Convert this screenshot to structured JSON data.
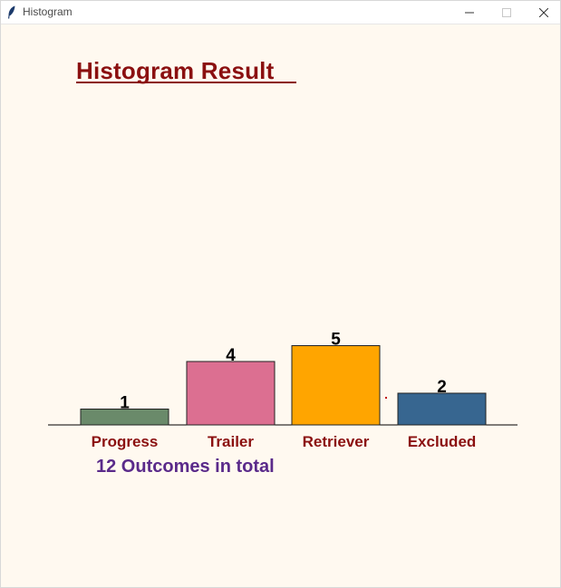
{
  "window": {
    "title": "Histogram",
    "icon": "feather-icon",
    "controls": [
      "minimize-icon",
      "maximize-icon",
      "close-icon"
    ],
    "background": "#fff9f0"
  },
  "heading": "Histogram Result ",
  "chart_data": {
    "type": "bar",
    "categories": [
      "Progress",
      "Trailer",
      "Retriever",
      "Excluded"
    ],
    "values": [
      1,
      4,
      5,
      2
    ],
    "colors": [
      "#6a8a6a",
      "#dc6f91",
      "#ffa500",
      "#376690"
    ],
    "label_color": "#8b1010",
    "title": "Histogram Result ",
    "xlabel": "",
    "ylabel": "",
    "ylim": [
      0,
      5
    ],
    "grid": false
  },
  "summary": "12 Outcomes in total"
}
